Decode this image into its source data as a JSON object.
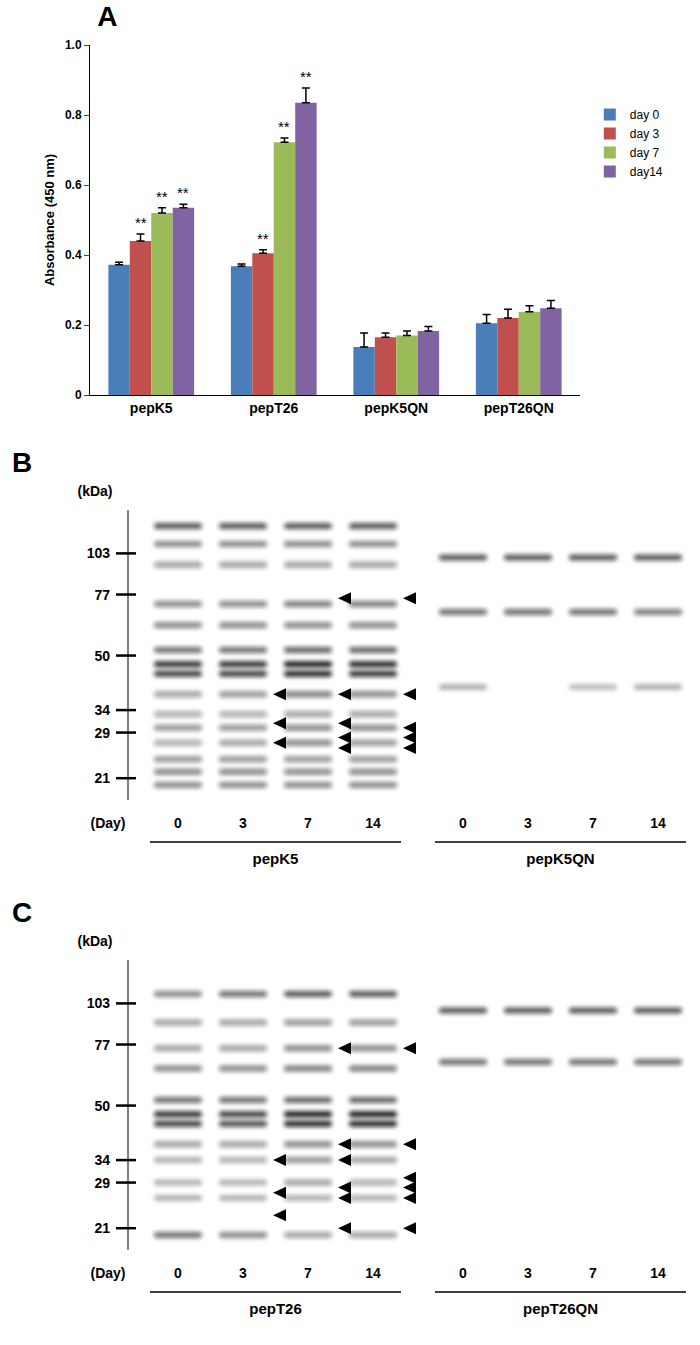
{
  "chart_data": {
    "type": "bar",
    "title": "A",
    "categories": [
      "pepK5",
      "pepT26",
      "pepK5QN",
      "pepT26QN"
    ],
    "series": [
      {
        "name": "day 0",
        "color": "#4a7ebb",
        "values": [
          0.372,
          0.368,
          0.137,
          0.205
        ],
        "errors": [
          0.007,
          0.006,
          0.04,
          0.025
        ]
      },
      {
        "name": "day 3",
        "color": "#c0504d",
        "values": [
          0.44,
          0.405,
          0.165,
          0.22
        ],
        "errors": [
          0.02,
          0.01,
          0.012,
          0.025
        ]
      },
      {
        "name": "day 7",
        "color": "#9bbb59",
        "values": [
          0.52,
          0.722,
          0.17,
          0.238
        ],
        "errors": [
          0.015,
          0.012,
          0.013,
          0.017
        ]
      },
      {
        "name": "day14",
        "color": "#8064a2",
        "values": [
          0.535,
          0.835,
          0.183,
          0.248
        ],
        "errors": [
          0.01,
          0.042,
          0.013,
          0.022
        ]
      }
    ],
    "y_label": "Absorbance (450 nm)",
    "ylim": [
      0,
      1
    ],
    "yticks": [
      0,
      0.2,
      0.4,
      0.6,
      0.8,
      {
        "value": 1,
        "label": "1.0"
      }
    ],
    "grid": false,
    "legend": "right",
    "annotations": [
      {
        "category": "pepK5",
        "series": "day 3",
        "text": "**"
      },
      {
        "category": "pepK5",
        "series": "day 7",
        "text": "**"
      },
      {
        "category": "pepK5",
        "series": "day14",
        "text": "**"
      },
      {
        "category": "pepT26",
        "series": "day 3",
        "text": "**"
      },
      {
        "category": "pepT26",
        "series": "day 7",
        "text": "**"
      },
      {
        "category": "pepT26",
        "series": "day14",
        "text": "**"
      }
    ]
  },
  "blots": [
    {
      "title": "B",
      "unit_label": "(kDa)",
      "x_label": "(Day)",
      "log": true,
      "ylim": [
        18,
        140
      ],
      "markers": [
        103,
        77,
        50,
        34,
        29,
        21
      ],
      "groups": [
        {
          "name": "pepK5",
          "days": [
            0,
            3,
            7,
            14
          ],
          "bands": [
            {
              "kDa": 125,
              "intensity": [
                0.7,
                0.7,
                0.7,
                0.7
              ]
            },
            {
              "kDa": 110,
              "intensity": [
                0.5,
                0.5,
                0.5,
                0.5
              ]
            },
            {
              "kDa": 95,
              "intensity": [
                0.4,
                0.4,
                0.4,
                0.4
              ]
            },
            {
              "kDa": 72,
              "intensity": [
                0.5,
                0.5,
                0.55,
                0.55
              ]
            },
            {
              "kDa": 62,
              "intensity": [
                0.5,
                0.5,
                0.5,
                0.5
              ]
            },
            {
              "kDa": 52,
              "intensity": [
                0.6,
                0.6,
                0.65,
                0.65
              ]
            },
            {
              "kDa": 47,
              "intensity": [
                0.85,
                0.85,
                0.95,
                0.9
              ]
            },
            {
              "kDa": 44,
              "intensity": [
                0.8,
                0.8,
                0.9,
                0.85
              ]
            },
            {
              "kDa": 38,
              "intensity": [
                0.4,
                0.45,
                0.55,
                0.5
              ]
            },
            {
              "kDa": 33,
              "intensity": [
                0.35,
                0.35,
                0.4,
                0.4
              ]
            },
            {
              "kDa": 30,
              "intensity": [
                0.45,
                0.45,
                0.5,
                0.5
              ]
            },
            {
              "kDa": 27,
              "intensity": [
                0.35,
                0.4,
                0.5,
                0.45
              ]
            },
            {
              "kDa": 24,
              "intensity": [
                0.45,
                0.45,
                0.45,
                0.45
              ]
            },
            {
              "kDa": 22,
              "intensity": [
                0.5,
                0.5,
                0.5,
                0.5
              ]
            },
            {
              "kDa": 20,
              "intensity": [
                0.5,
                0.5,
                0.5,
                0.5
              ]
            }
          ],
          "arrowheads": [
            [],
            [
              38,
              31,
              27
            ],
            [
              75,
              38,
              31,
              28,
              26
            ],
            [
              75,
              38,
              30,
              28,
              26
            ]
          ]
        },
        {
          "name": "pepK5QN",
          "days": [
            0,
            3,
            7,
            14
          ],
          "bands": [
            {
              "kDa": 100,
              "intensity": [
                0.7,
                0.7,
                0.7,
                0.7
              ]
            },
            {
              "kDa": 68,
              "intensity": [
                0.6,
                0.6,
                0.6,
                0.55
              ]
            },
            {
              "kDa": 40,
              "intensity": [
                0.3,
                0,
                0.25,
                0.3
              ]
            }
          ],
          "arrowheads": [
            [],
            [],
            [],
            []
          ]
        }
      ]
    },
    {
      "title": "C",
      "unit_label": "(kDa)",
      "x_label": "(Day)",
      "log": true,
      "ylim": [
        18,
        140
      ],
      "markers": [
        103,
        77,
        50,
        34,
        29,
        21
      ],
      "groups": [
        {
          "name": "pepT26",
          "days": [
            0,
            3,
            7,
            14
          ],
          "bands": [
            {
              "kDa": 110,
              "intensity": [
                0.5,
                0.6,
                0.7,
                0.7
              ]
            },
            {
              "kDa": 90,
              "intensity": [
                0.4,
                0.4,
                0.45,
                0.45
              ]
            },
            {
              "kDa": 75,
              "intensity": [
                0.4,
                0.4,
                0.5,
                0.5
              ]
            },
            {
              "kDa": 65,
              "intensity": [
                0.5,
                0.5,
                0.55,
                0.55
              ]
            },
            {
              "kDa": 52,
              "intensity": [
                0.6,
                0.6,
                0.65,
                0.65
              ]
            },
            {
              "kDa": 47,
              "intensity": [
                0.85,
                0.8,
                0.95,
                0.95
              ]
            },
            {
              "kDa": 44,
              "intensity": [
                0.8,
                0.75,
                0.9,
                0.9
              ]
            },
            {
              "kDa": 38,
              "intensity": [
                0.4,
                0.4,
                0.5,
                0.5
              ]
            },
            {
              "kDa": 34,
              "intensity": [
                0.35,
                0.35,
                0.45,
                0.4
              ]
            },
            {
              "kDa": 29,
              "intensity": [
                0.3,
                0.3,
                0.4,
                0.35
              ]
            },
            {
              "kDa": 26,
              "intensity": [
                0.3,
                0.3,
                0.35,
                0.35
              ]
            },
            {
              "kDa": 20,
              "intensity": [
                0.6,
                0.5,
                0.4,
                0.4
              ]
            }
          ],
          "arrowheads": [
            [],
            [
              34,
              27,
              23
            ],
            [
              75,
              38,
              34,
              28,
              26,
              21
            ],
            [
              75,
              38,
              30,
              28,
              26,
              21
            ]
          ]
        },
        {
          "name": "pepT26QN",
          "days": [
            0,
            3,
            7,
            14
          ],
          "bands": [
            {
              "kDa": 98,
              "intensity": [
                0.7,
                0.7,
                0.7,
                0.7
              ]
            },
            {
              "kDa": 68,
              "intensity": [
                0.6,
                0.6,
                0.6,
                0.6
              ]
            }
          ],
          "arrowheads": [
            [],
            [],
            [],
            []
          ]
        }
      ]
    }
  ]
}
